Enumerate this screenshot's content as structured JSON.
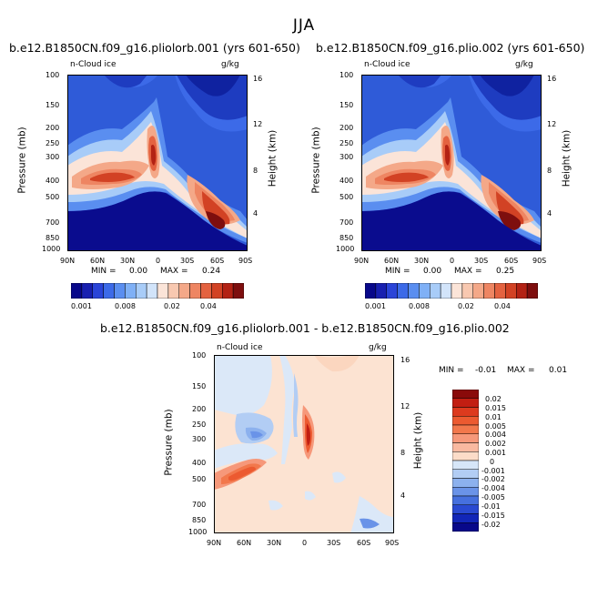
{
  "figure_title": "JJA",
  "panels": [
    {
      "title": "b.e12.B1850CN.f09_g16.pliolorb.001 (yrs 601-650)",
      "var_label": "n-Cloud ice",
      "units": "g/kg",
      "min_label": "MIN =",
      "min": "0.00",
      "max_label": "MAX =",
      "max": "0.24"
    },
    {
      "title": "b.e12.B1850CN.f09_g16.plio.002 (yrs 601-650)",
      "var_label": "n-Cloud ice",
      "units": "g/kg",
      "min_label": "MIN =",
      "min": "0.00",
      "max_label": "MAX =",
      "max": "0.25"
    },
    {
      "title": "b.e12.B1850CN.f09_g16.pliolorb.001 - b.e12.B1850CN.f09_g16.plio.002",
      "var_label": "n-Cloud ice",
      "units": "g/kg",
      "min_label": "MIN =",
      "min": "-0.01",
      "max_label": "MAX =",
      "max": "0.01"
    }
  ],
  "axes": {
    "ylabel": "Pressure (mb)",
    "ylabel_right": "Height (km)",
    "pressure_ticks": [
      "100",
      "150",
      "200",
      "250",
      "300",
      "400",
      "500",
      "700",
      "850",
      "1000"
    ],
    "height_ticks": [
      "16",
      "12",
      "8",
      "4"
    ],
    "lat_ticks": [
      "90N",
      "60N",
      "30N",
      "0",
      "30S",
      "60S",
      "90S"
    ]
  },
  "colorbar_top": {
    "labels": [
      "0.001",
      "0.008",
      "0.02",
      "0.04"
    ],
    "colors": [
      "#08088a",
      "#1820b0",
      "#2a44d8",
      "#3c6ae8",
      "#5a8ef0",
      "#7fb0f6",
      "#a8ccf8",
      "#d2e4fa",
      "#fbe4d8",
      "#f8c8b0",
      "#f4a888",
      "#ee8562",
      "#e46240",
      "#d24224",
      "#b32214",
      "#7e0e0e"
    ]
  },
  "colorbar_diff": {
    "labels": [
      "0.02",
      "0.015",
      "0.01",
      "0.005",
      "0.004",
      "0.002",
      "0.001",
      "0",
      "-0.001",
      "-0.002",
      "-0.004",
      "-0.005",
      "-0.01",
      "-0.015",
      "-0.02"
    ],
    "colors": [
      "#8a0a0a",
      "#c21e12",
      "#dd3a1e",
      "#ec5a30",
      "#f2784c",
      "#f6987a",
      "#f9b9a0",
      "#fcdcc8",
      "#d6e6f8",
      "#b2cdf4",
      "#8cb1ee",
      "#6a93e8",
      "#4670de",
      "#2a4ad2",
      "#1226b8",
      "#08088a"
    ]
  },
  "chart_data": [
    {
      "type": "heatmap",
      "title": "b.e12.B1850CN.f09_g16.pliolorb.001 (yrs 601-650)",
      "variable": "n-Cloud ice",
      "units": "g/kg",
      "x_range": [
        "90N",
        "90S"
      ],
      "y_range": [
        100,
        1000
      ],
      "min": 0.0,
      "max": 0.24,
      "levels": [
        0.001,
        0.002,
        0.004,
        0.006,
        0.008,
        0.01,
        0.015,
        0.02,
        0.025,
        0.03,
        0.035,
        0.04,
        0.045,
        0.05
      ]
    },
    {
      "type": "heatmap",
      "title": "b.e12.B1850CN.f09_g16.plio.002 (yrs 601-650)",
      "variable": "n-Cloud ice",
      "units": "g/kg",
      "x_range": [
        "90N",
        "90S"
      ],
      "y_range": [
        100,
        1000
      ],
      "min": 0.0,
      "max": 0.25,
      "levels": [
        0.001,
        0.002,
        0.004,
        0.006,
        0.008,
        0.01,
        0.015,
        0.02,
        0.025,
        0.03,
        0.035,
        0.04,
        0.045,
        0.05
      ]
    },
    {
      "type": "heatmap",
      "title": "b.e12.B1850CN.f09_g16.pliolorb.001 - b.e12.B1850CN.f09_g16.plio.002",
      "variable": "n-Cloud ice",
      "units": "g/kg",
      "x_range": [
        "90N",
        "90S"
      ],
      "y_range": [
        100,
        1000
      ],
      "min": -0.01,
      "max": 0.01,
      "levels": [
        -0.02,
        -0.015,
        -0.01,
        -0.005,
        -0.004,
        -0.002,
        -0.001,
        0,
        0.001,
        0.002,
        0.004,
        0.005,
        0.01,
        0.015,
        0.02
      ]
    }
  ]
}
